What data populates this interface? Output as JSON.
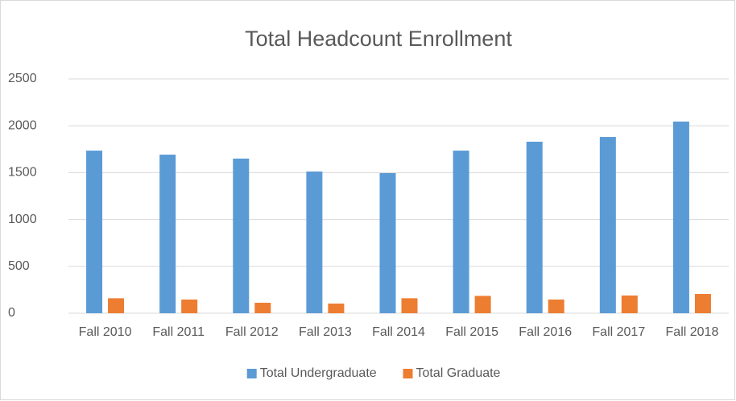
{
  "chart_data": {
    "type": "bar",
    "title": "Total Headcount Enrollment",
    "categories": [
      "Fall 2010",
      "Fall 2011",
      "Fall 2012",
      "Fall 2013",
      "Fall 2014",
      "Fall 2015",
      "Fall 2016",
      "Fall 2017",
      "Fall 2018"
    ],
    "series": [
      {
        "name": "Total Undergraduate",
        "color": "#5b9bd5",
        "values": [
          1735,
          1692,
          1650,
          1512,
          1495,
          1735,
          1830,
          1881,
          2045
        ]
      },
      {
        "name": "Total Graduate",
        "color": "#ed7d31",
        "values": [
          160,
          146,
          112,
          103,
          160,
          185,
          146,
          189,
          206
        ]
      }
    ],
    "ylim": [
      0,
      2500
    ],
    "yticks": [
      0,
      500,
      1000,
      1500,
      2000,
      2500
    ],
    "grid": true,
    "legend": "bottom"
  }
}
